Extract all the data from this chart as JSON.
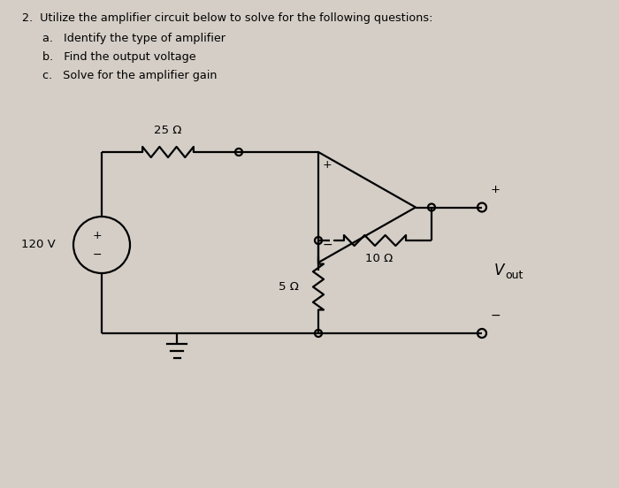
{
  "background_color": "#d4cec6",
  "title_line": "2.  Utilize the amplifier circuit below to solve for the following questions:",
  "sub_a": "a.   Identify the type of amplifier",
  "sub_b": "b.   Find the output voltage",
  "sub_c": "c.   Solve for the amplifier gain",
  "source_label": "120 V",
  "r1_label": "25 Ω",
  "r2_label": "5 Ω",
  "r3_label": "10 Ω",
  "vout_label": "V",
  "vout_sub": "out",
  "lw": 1.6
}
